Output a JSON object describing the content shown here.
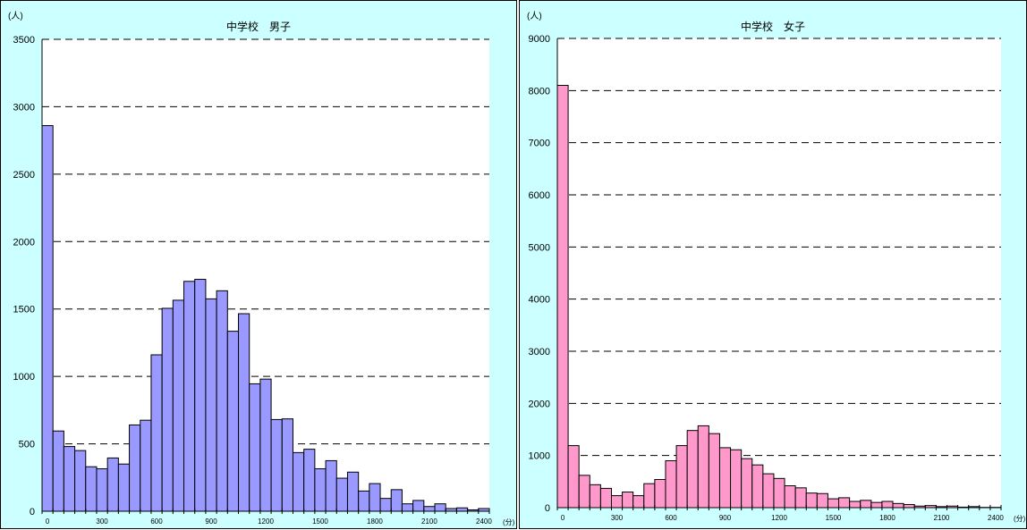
{
  "chart_data": [
    {
      "type": "bar",
      "title": "中学校　男子",
      "ylabel": "(人)",
      "xlabel": "(分)",
      "ylim": [
        0,
        3500
      ],
      "yticks": [
        0,
        500,
        1000,
        1500,
        2000,
        2500,
        3000,
        3500
      ],
      "xlim": [
        0,
        2460
      ],
      "xticks": [
        0,
        300,
        600,
        900,
        1200,
        1500,
        1800,
        2100,
        2400
      ],
      "bin_width": 60,
      "grid": true,
      "bar_color": "#9999ff",
      "series": [
        {
          "values": [
            2860,
            595,
            480,
            450,
            330,
            315,
            395,
            350,
            640,
            675,
            1160,
            1505,
            1565,
            1705,
            1720,
            1575,
            1635,
            1335,
            1465,
            945,
            980,
            680,
            685,
            435,
            460,
            315,
            375,
            245,
            290,
            150,
            205,
            95,
            160,
            55,
            80,
            35,
            55,
            20,
            25,
            10,
            20
          ]
        }
      ]
    },
    {
      "type": "bar",
      "title": "中学校　女子",
      "ylabel": "(人)",
      "xlabel": "(分)",
      "ylim": [
        0,
        9000
      ],
      "yticks": [
        0,
        1000,
        2000,
        3000,
        4000,
        5000,
        6000,
        7000,
        8000,
        9000
      ],
      "xlim": [
        0,
        2460
      ],
      "xticks": [
        0,
        300,
        600,
        900,
        1200,
        1500,
        1800,
        2100,
        2400
      ],
      "bin_width": 60,
      "grid": true,
      "bar_color": "#ff99cc",
      "series": [
        {
          "values": [
            8100,
            1190,
            620,
            440,
            370,
            230,
            300,
            230,
            460,
            540,
            900,
            1190,
            1480,
            1570,
            1420,
            1150,
            1110,
            940,
            820,
            650,
            560,
            420,
            380,
            280,
            270,
            170,
            190,
            120,
            140,
            100,
            120,
            80,
            60,
            30,
            40,
            20,
            30,
            10,
            20,
            5,
            5
          ]
        }
      ]
    }
  ]
}
